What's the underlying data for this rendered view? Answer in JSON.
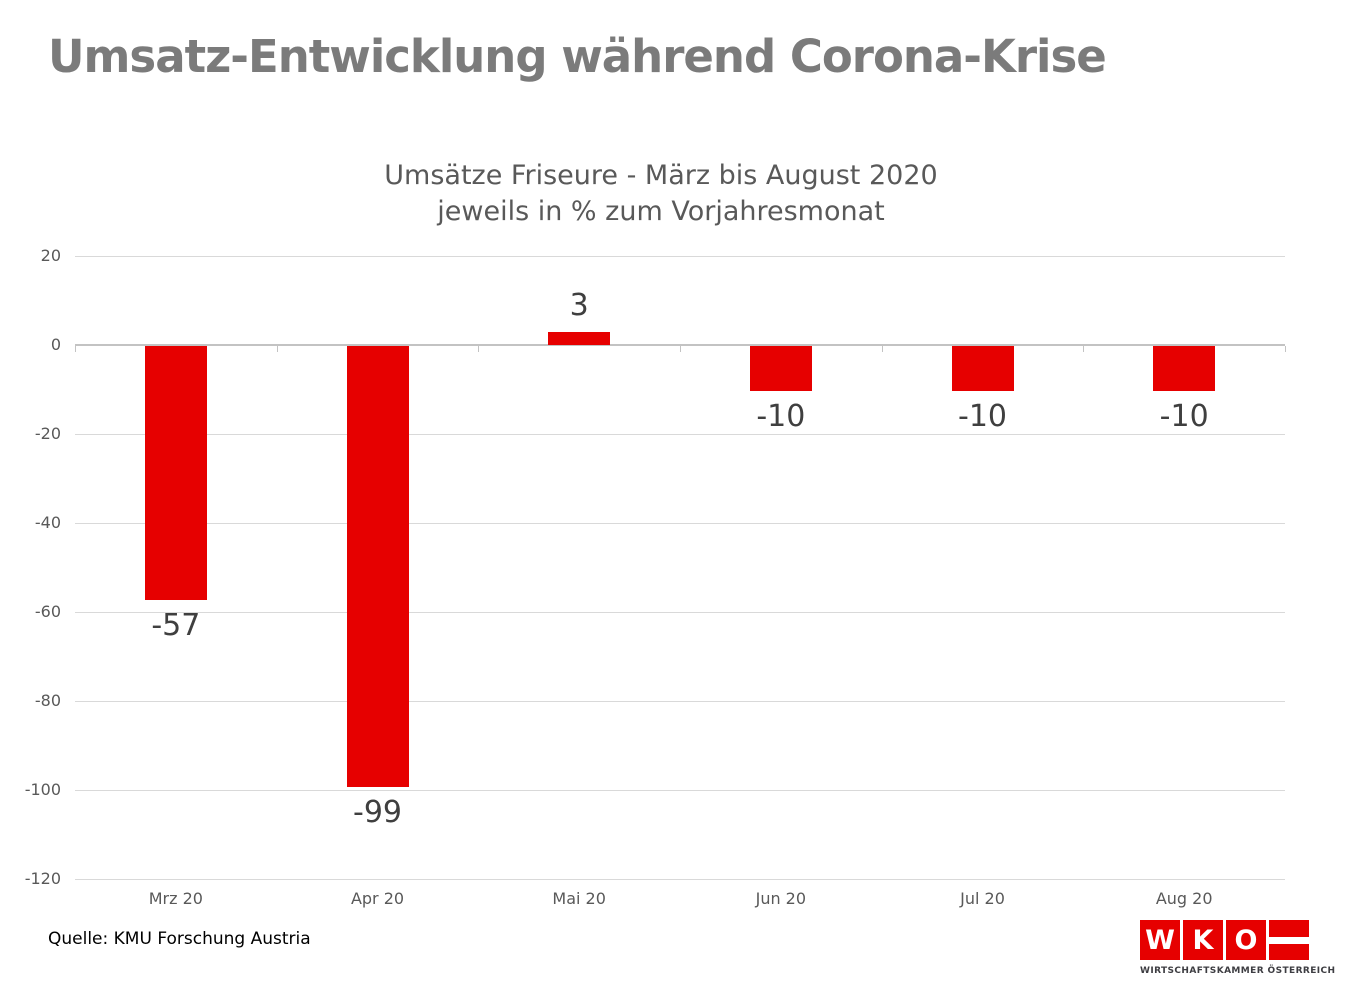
{
  "title": "Umsatz-Entwicklung während Corona-Krise",
  "subtitle_line1": "Umsätze Friseure - März bis August 2020",
  "subtitle_line2": "jeweils in % zum Vorjahresmonat",
  "source": "Quelle: KMU Forschung Austria",
  "logo": {
    "letter_w": "W",
    "letter_k": "K",
    "letter_o": "O",
    "caption": "WIRTSCHAFTSKAMMER ÖSTERREICH"
  },
  "colors": {
    "bar": "#e60000",
    "logo_red": "#e60000",
    "title_text": "#7b7b7b",
    "subtitle_text": "#595959",
    "axis_text": "#595959",
    "data_label_text": "#3f3f3f",
    "gridline": "#d9d9d9",
    "zero_axis_line": "#c3c3c3"
  },
  "chart_data": {
    "type": "bar",
    "categories": [
      "Mrz 20",
      "Apr 20",
      "Mai 20",
      "Jun 20",
      "Jul 20",
      "Aug 20"
    ],
    "values": [
      -57,
      -99,
      3,
      -10,
      -10,
      -10
    ],
    "data_labels": [
      "-57",
      "-99",
      "3",
      "-10",
      "-10",
      "-10"
    ],
    "title": "Umsätze Friseure - März bis August 2020 jeweils in % zum Vorjahresmonat",
    "xlabel": "",
    "ylabel": "",
    "ylim": [
      -120,
      20
    ],
    "ytick_step": 20,
    "ytick_labels": [
      "20",
      "0",
      "-20",
      "-40",
      "-60",
      "-80",
      "-100",
      "-120"
    ],
    "grid": true,
    "legend": false,
    "bar_color": "#e60000"
  }
}
